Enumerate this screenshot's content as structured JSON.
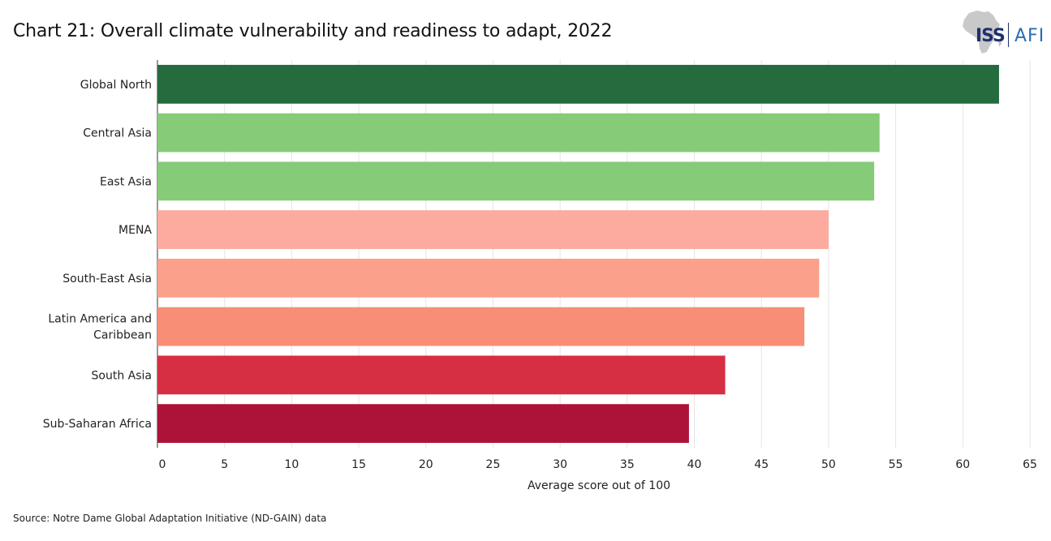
{
  "title": "Chart 21: Overall climate vulnerability and readiness to adapt, 2022",
  "source": "Source: Notre Dame Global Adaptation Initiative (ND-GAIN) data",
  "logo": {
    "left": "ISS",
    "right": "AFI",
    "icon": "africa-map-icon"
  },
  "chart_data": {
    "type": "bar",
    "orientation": "horizontal",
    "categories": [
      "Global North",
      "Central Asia",
      "East Asia",
      "MENA",
      "South-East Asia",
      "Latin America and Caribbean",
      "South Asia",
      "Sub-Saharan Africa"
    ],
    "category_lines": [
      [
        "Global North"
      ],
      [
        "Central Asia"
      ],
      [
        "East Asia"
      ],
      [
        "MENA"
      ],
      [
        "South-East Asia"
      ],
      [
        "Latin America and",
        "Caribbean"
      ],
      [
        "South Asia"
      ],
      [
        "Sub-Saharan Africa"
      ]
    ],
    "values": [
      62.7,
      53.8,
      53.4,
      50.0,
      49.3,
      48.2,
      42.3,
      39.6
    ],
    "colors": [
      "#246b3e",
      "#86cb77",
      "#86cb77",
      "#fcab9e",
      "#fba08b",
      "#f88e76",
      "#d62e42",
      "#ad1339"
    ],
    "xlabel": "Average score out of 100",
    "ylabel": "",
    "xlim": [
      0,
      65
    ],
    "xticks": [
      0,
      5,
      10,
      15,
      20,
      25,
      30,
      35,
      40,
      45,
      50,
      55,
      60,
      65
    ],
    "grid": "vertical"
  }
}
